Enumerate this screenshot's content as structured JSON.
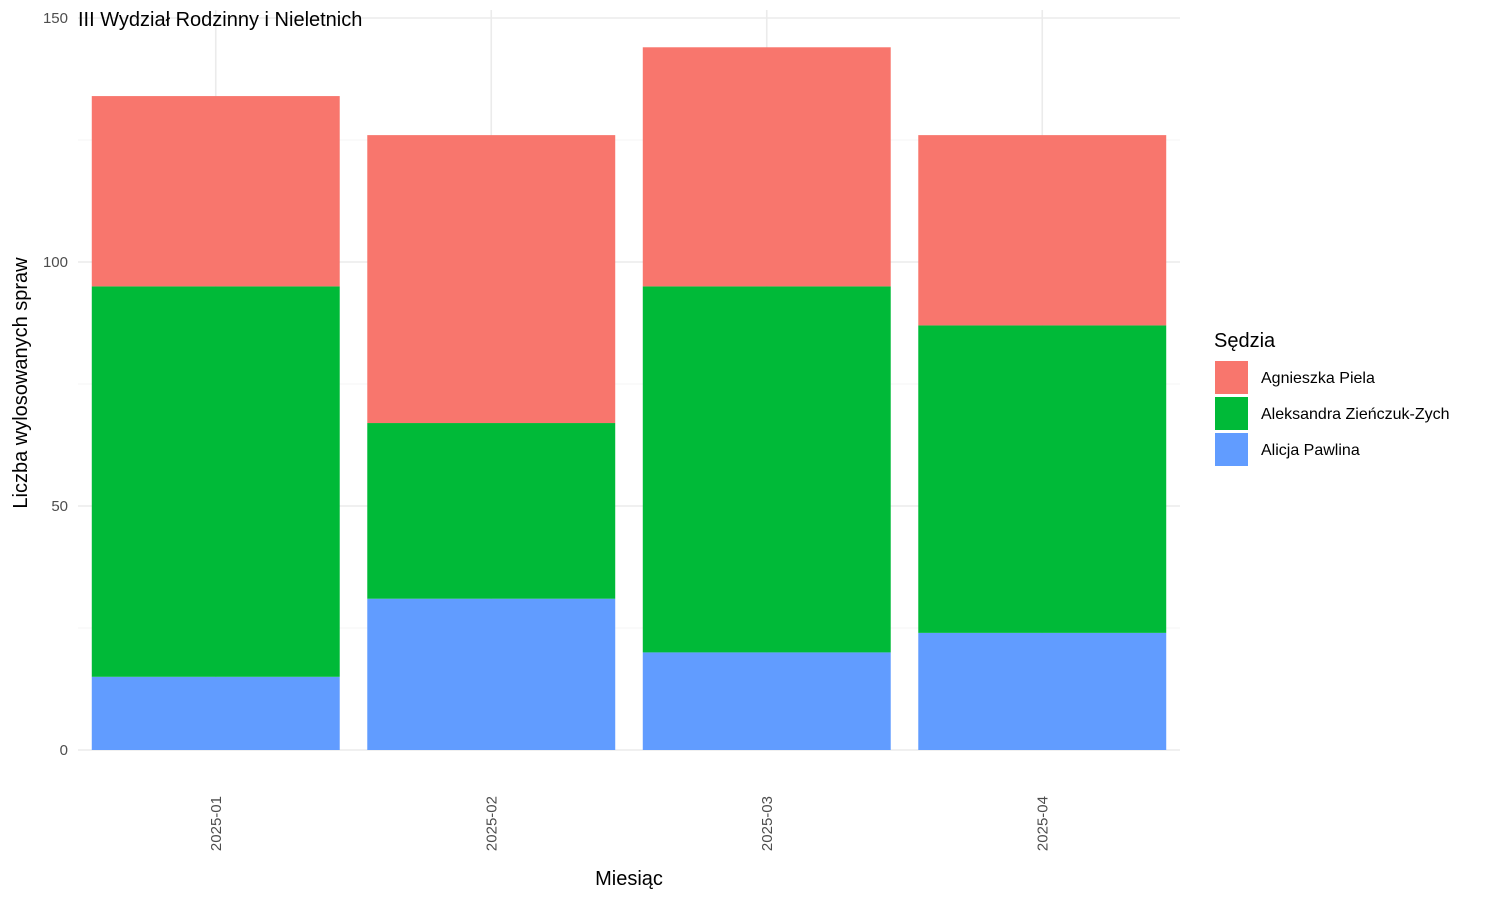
{
  "chart_data": {
    "type": "bar",
    "stacked": true,
    "title": "III Wydział Rodzinny i Nieletnich",
    "xlabel": "Miesiąc",
    "ylabel": "Liczba wylosowanych spraw",
    "categories": [
      "2025-01",
      "2025-02",
      "2025-03",
      "2025-04"
    ],
    "ylim": [
      0,
      150
    ],
    "yticks": [
      0,
      50,
      100,
      150
    ],
    "grid": true,
    "legend": {
      "title": "Sędzia",
      "position": "right"
    },
    "series": [
      {
        "name": "Alicja Pawlina",
        "color": "#619CFF",
        "values": [
          15,
          31,
          20,
          24
        ]
      },
      {
        "name": "Aleksandra Zieńczuk-Zych",
        "color": "#00BA38",
        "values": [
          80,
          36,
          75,
          63
        ]
      },
      {
        "name": "Agnieszka Piela",
        "color": "#F8766D",
        "values": [
          39,
          59,
          49,
          39
        ]
      }
    ],
    "legend_order": [
      "Agnieszka Piela",
      "Aleksandra Zieńczuk-Zych",
      "Alicja Pawlina"
    ]
  }
}
